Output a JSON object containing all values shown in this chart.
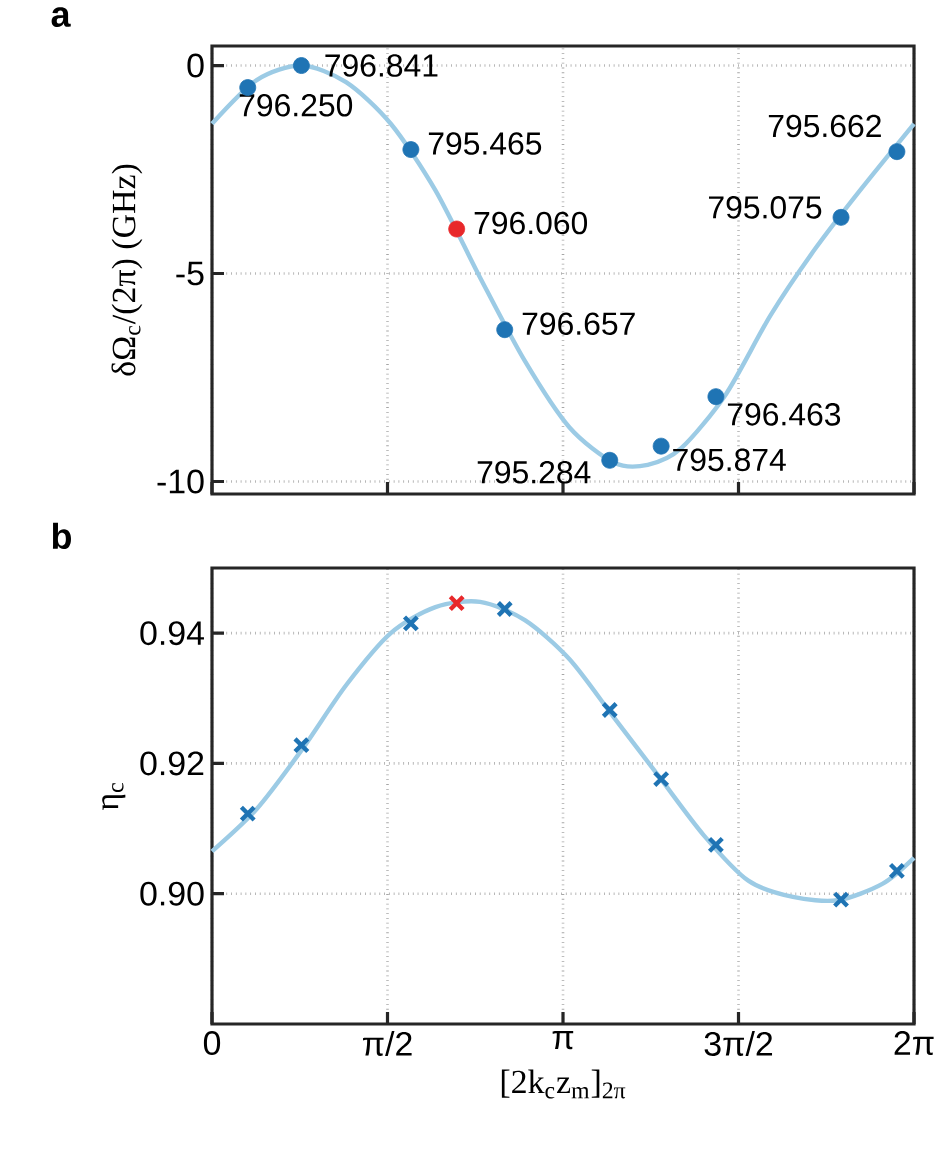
{
  "chart_data": [
    {
      "type": "scatter",
      "title": "a",
      "ylabel": "δΩ$_{c}$/(2π) (GHz)",
      "xlim": [
        0,
        6.2832
      ],
      "ylim": [
        -10.3,
        0.47
      ],
      "xticks": [
        {
          "value": 0,
          "label": null
        },
        {
          "value": 1.5708,
          "label": null
        },
        {
          "value": 3.1416,
          "label": null
        },
        {
          "value": 4.7124,
          "label": null
        },
        {
          "value": 6.2832,
          "label": null
        }
      ],
      "yticks": [
        0,
        -5,
        -10
      ],
      "tick_labels": "y",
      "grid": true,
      "series": [
        {
          "type": "line",
          "color": "#9ccbe5",
          "line_style": "solid",
          "x": [
            0,
            0.4,
            0.8,
            1.2,
            1.6,
            2.0,
            2.4,
            2.8,
            3.2,
            3.6,
            3.9,
            4.2,
            4.6,
            5.0,
            5.4,
            5.8,
            6.2832
          ],
          "values": [
            -1.4,
            -0.35,
            0.0,
            -0.4,
            -1.4,
            -3.0,
            -5.1,
            -7.1,
            -8.7,
            -9.55,
            -9.6,
            -9.2,
            -7.9,
            -6.0,
            -4.4,
            -3.0,
            -1.4
          ]
        },
        {
          "marker": "circle",
          "colors": [
            "#1f74b4",
            "#1f74b4",
            "#1f74b4",
            "#e8282b",
            "#1f74b4",
            "#1f74b4",
            "#1f74b4",
            "#1f74b4",
            "#1f74b4",
            "#1f74b4"
          ],
          "x": [
            0.32,
            0.8,
            1.78,
            2.19,
            2.62,
            3.56,
            4.02,
            4.51,
            5.63,
            6.13
          ],
          "values": [
            -0.53,
            0.0,
            -2.02,
            -3.93,
            -6.35,
            -9.49,
            -9.15,
            -7.96,
            -3.65,
            -2.07
          ]
        }
      ],
      "annotations": [
        {
          "text": "796.250",
          "x": 0.32,
          "y": -0.53
        },
        {
          "text": "796.841",
          "x": 0.8,
          "y": 0.0
        },
        {
          "text": "795.465",
          "x": 1.78,
          "y": -2.02
        },
        {
          "text": "796.060",
          "x": 2.19,
          "y": -3.93
        },
        {
          "text": "796.657",
          "x": 2.62,
          "y": -6.35
        },
        {
          "text": "795.284",
          "x": 3.56,
          "y": -9.49
        },
        {
          "text": "795.874",
          "x": 4.02,
          "y": -9.15
        },
        {
          "text": "796.463",
          "x": 4.51,
          "y": -7.96
        },
        {
          "text": "795.075",
          "x": 5.63,
          "y": -3.65
        },
        {
          "text": "795.662",
          "x": 6.13,
          "y": -2.07
        }
      ]
    },
    {
      "type": "scatter",
      "title": "b",
      "xlabel": "[2k$_{c}$z$_{m}$]$_{2π}$",
      "ylabel": "η$_{c}$",
      "xlim": [
        0,
        6.2832
      ],
      "ylim": [
        0.88,
        0.95
      ],
      "xticks": [
        0,
        {
          "value": 1.5708,
          "label": "π/2"
        },
        {
          "value": 3.1416,
          "label": "π"
        },
        {
          "value": 4.7124,
          "label": "3π/2"
        },
        {
          "value": 6.2832,
          "label": "2π"
        }
      ],
      "yticks": [
        {
          "value": 0.9,
          "label": "0.90"
        },
        0.92,
        0.94
      ],
      "grid": true,
      "series": [
        {
          "type": "line",
          "color": "#9ccbe5",
          "line_style": "solid",
          "x": [
            0,
            0.4,
            0.8,
            1.2,
            1.6,
            2.0,
            2.4,
            2.8,
            3.2,
            3.6,
            4.0,
            4.4,
            4.8,
            5.2,
            5.6,
            6.0,
            6.2832
          ],
          "values": [
            0.9065,
            0.913,
            0.922,
            0.932,
            0.94,
            0.944,
            0.9448,
            0.942,
            0.936,
            0.927,
            0.918,
            0.909,
            0.902,
            0.8995,
            0.899,
            0.9015,
            0.9055
          ]
        },
        {
          "marker": "cross",
          "colors": [
            "#1f74b4",
            "#1f74b4",
            "#1f74b4",
            "#e8282b",
            "#1f74b4",
            "#1f74b4",
            "#1f74b4",
            "#1f74b4",
            "#1f74b4",
            "#1f74b4"
          ],
          "x": [
            0.32,
            0.8,
            1.78,
            2.19,
            2.62,
            3.56,
            4.02,
            4.51,
            5.63,
            6.13
          ],
          "values": [
            0.9123,
            0.9228,
            0.9415,
            0.9446,
            0.9437,
            0.9282,
            0.9176,
            0.9075,
            0.8991,
            0.9035
          ]
        }
      ]
    }
  ]
}
